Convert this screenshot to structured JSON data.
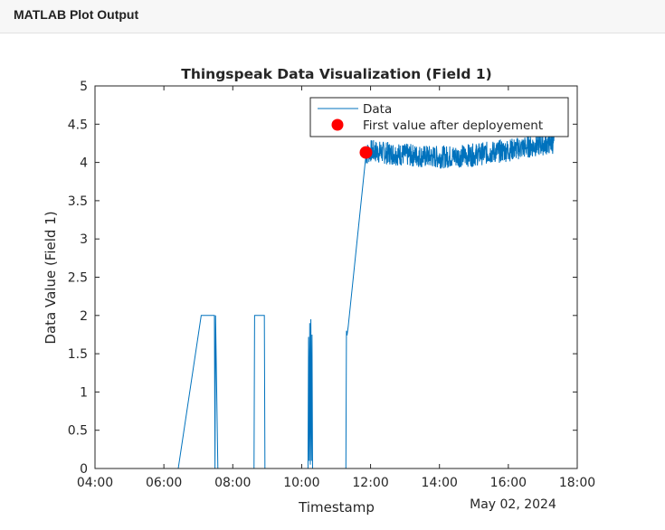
{
  "window": {
    "title": "MATLAB Plot Output"
  },
  "chart_data": {
    "type": "line",
    "title": "Thingspeak Data Visualization (Field 1)",
    "xlabel": "Timestamp",
    "ylabel": "Data Value (Field 1)",
    "date_label": "May 02, 2024",
    "xlim": [
      "04:00",
      "18:00"
    ],
    "ylim": [
      0,
      5
    ],
    "x_ticks": [
      "04:00",
      "06:00",
      "08:00",
      "10:00",
      "12:00",
      "14:00",
      "16:00",
      "18:00"
    ],
    "y_ticks": [
      "0",
      "0.5",
      "1",
      "1.5",
      "2",
      "2.5",
      "3",
      "3.5",
      "4",
      "4.5",
      "5"
    ],
    "grid": false,
    "legend_position": "top-right",
    "series": [
      {
        "name": "Data",
        "style": "line",
        "color": "#0072BD",
        "points": [
          [
            "04:50",
            0
          ],
          [
            "06:25",
            0
          ],
          [
            "07:05",
            2
          ],
          [
            "07:09",
            2
          ],
          [
            "07:28",
            2
          ],
          [
            "07:29",
            0
          ],
          [
            "07:30",
            2
          ],
          [
            "07:34",
            0
          ],
          [
            "08:37",
            0
          ],
          [
            "08:38",
            2
          ],
          [
            "08:55",
            2
          ],
          [
            "08:56",
            0
          ],
          [
            "10:11",
            0
          ],
          [
            "10:12",
            1.72
          ],
          [
            "10:13",
            0.1
          ],
          [
            "10:14",
            1.9
          ],
          [
            "10:15",
            0.05
          ],
          [
            "10:16",
            1.95
          ],
          [
            "10:17",
            0.1
          ],
          [
            "10:18",
            1.75
          ],
          [
            "10:19",
            0
          ],
          [
            "11:17",
            0
          ],
          [
            "11:18",
            1.8
          ],
          [
            "11:19",
            1.74
          ],
          [
            "11:21",
            1.85
          ],
          [
            "11:52",
            4.1
          ],
          [
            "12:00",
            4.15
          ],
          [
            "12:30",
            4.12
          ],
          [
            "13:00",
            4.1
          ],
          [
            "13:30",
            4.08
          ],
          [
            "14:00",
            4.07
          ],
          [
            "14:30",
            4.08
          ],
          [
            "15:00",
            4.1
          ],
          [
            "15:30",
            4.13
          ],
          [
            "16:00",
            4.16
          ],
          [
            "16:30",
            4.2
          ],
          [
            "17:00",
            4.24
          ],
          [
            "17:20",
            4.26
          ]
        ],
        "noise": {
          "from": "11:52",
          "to": "17:20",
          "amplitude": 0.15
        }
      },
      {
        "name": "First value after deployement",
        "style": "marker",
        "color": "#FF0000",
        "points": [
          [
            "11:52",
            4.13
          ]
        ]
      }
    ]
  }
}
